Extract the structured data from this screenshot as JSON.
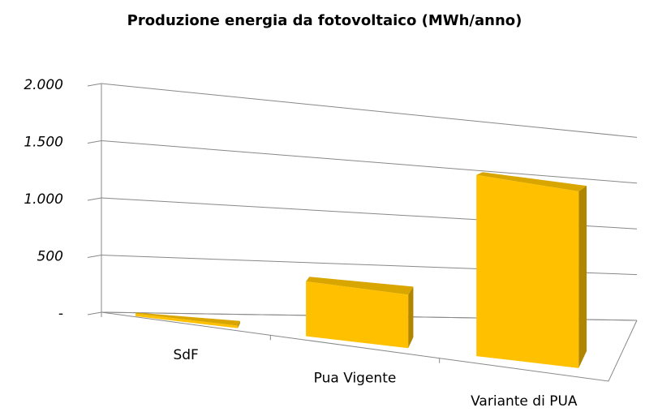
{
  "chart_data": {
    "type": "bar3d",
    "title": "Produzione energia da fotovoltaico (MWh/anno)",
    "categories": [
      "SdF",
      "Pua Vigente",
      "Variante di PUA"
    ],
    "values": [
      20,
      450,
      1550
    ],
    "color": "#FFC000",
    "ylim": [
      0,
      2000
    ],
    "yticks": [
      {
        "value": 0,
        "label": "-"
      },
      {
        "value": 500,
        "label": "500"
      },
      {
        "value": 1000,
        "label": "1.000"
      },
      {
        "value": 1500,
        "label": "1.500"
      },
      {
        "value": 2000,
        "label": "2.000"
      }
    ],
    "grid": true
  }
}
